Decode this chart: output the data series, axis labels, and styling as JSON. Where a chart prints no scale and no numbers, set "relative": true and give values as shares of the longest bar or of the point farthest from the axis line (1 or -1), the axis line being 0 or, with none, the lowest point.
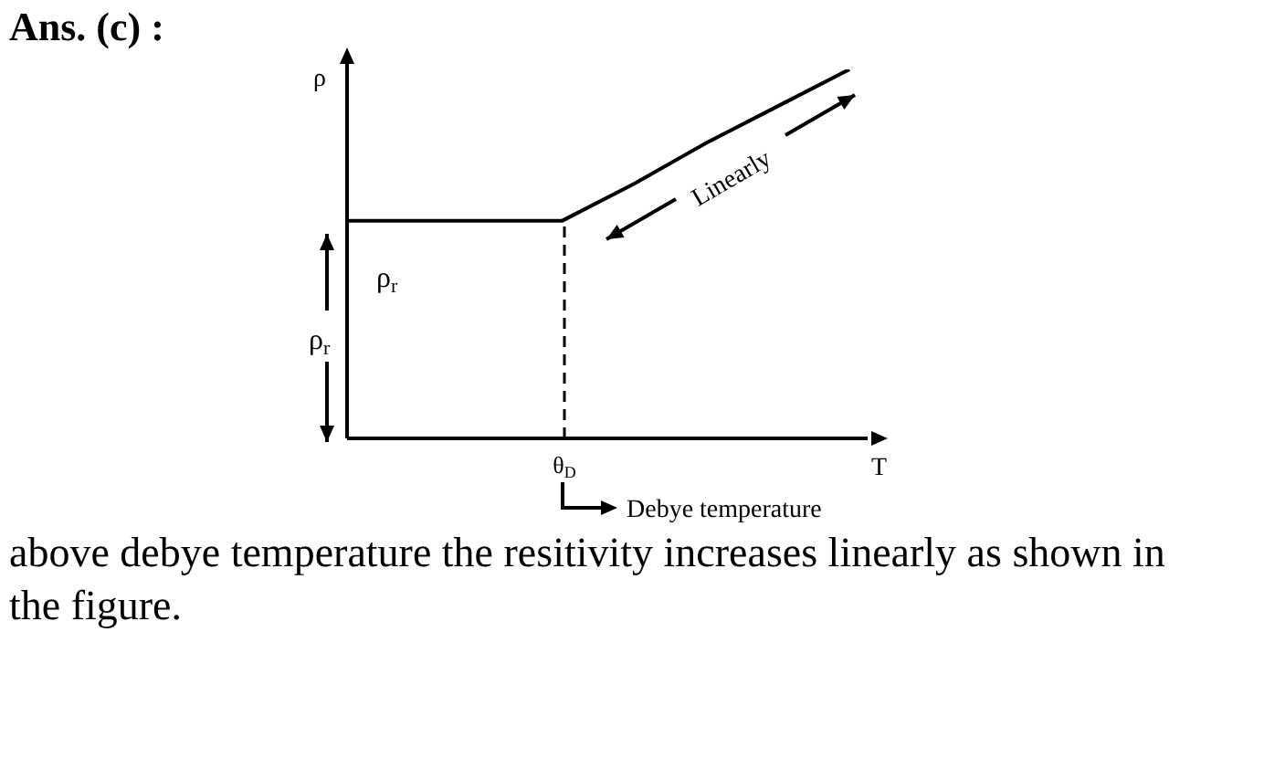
{
  "chart_data": {
    "type": "line",
    "title": "Ans. (c) :",
    "xlabel": "T",
    "ylabel": "ρ",
    "relative": true,
    "categories": [
      null,
      null,
      null,
      null,
      null,
      null,
      null,
      null
    ],
    "series": [
      {
        "color": "#000000",
        "values": [
          0.59,
          0.59,
          0.59,
          0.59,
          0.69,
          0.8,
          0.9,
          1
        ]
      }
    ],
    "annotations": [
      "Linearly",
      "ρ$_{r}$",
      "ρ$_{r}$",
      "Debye temperature",
      "θ$_{D}$",
      "above debye temperature the resitivity increases linearly as shown in the figure."
    ],
    "marker": "none"
  }
}
